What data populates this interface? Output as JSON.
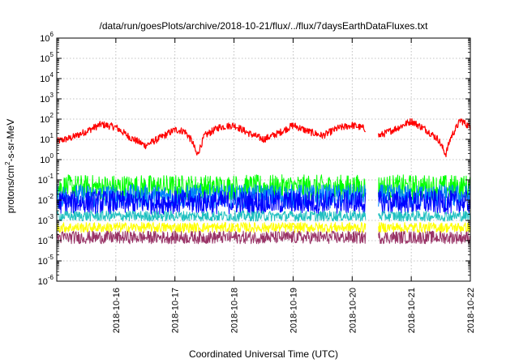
{
  "chart_data": {
    "type": "line",
    "title": "/data/run/goesPlots/archive/2018-10-21/flux/../flux/7daysEarthDataFluxes.txt",
    "xlabel": "Coordinated Universal Time (UTC)",
    "ylabel": "protons/cm²-s-sr-MeV",
    "ylabel_base": "protons/cm",
    "ylabel_sup": "2",
    "ylabel_rest": "-s-sr-MeV",
    "y_scale": "log",
    "ylim": [
      1e-06,
      1000000.0
    ],
    "y_ticks": [
      {
        "base": "10",
        "exp": "-6",
        "value": 1e-06
      },
      {
        "base": "10",
        "exp": "-5",
        "value": 1e-05
      },
      {
        "base": "10",
        "exp": "-4",
        "value": 0.0001
      },
      {
        "base": "10",
        "exp": "-3",
        "value": 0.001
      },
      {
        "base": "10",
        "exp": "-2",
        "value": 0.01
      },
      {
        "base": "10",
        "exp": "-1",
        "value": 0.1
      },
      {
        "base": "10",
        "exp": "0",
        "value": 1
      },
      {
        "base": "10",
        "exp": "1",
        "value": 10
      },
      {
        "base": "10",
        "exp": "2",
        "value": 100
      },
      {
        "base": "10",
        "exp": "3",
        "value": 1000
      },
      {
        "base": "10",
        "exp": "4",
        "value": 10000
      },
      {
        "base": "10",
        "exp": "5",
        "value": 100000
      },
      {
        "base": "10",
        "exp": "6",
        "value": 1000000
      }
    ],
    "xlim": [
      "2018-10-15T00:00",
      "2018-10-22T00:00"
    ],
    "x_ticks": [
      "2018-10-16",
      "2018-10-17",
      "2018-10-18",
      "2018-10-19",
      "2018-10-20",
      "2018-10-21",
      "2018-10-22"
    ],
    "grid": true,
    "legend": "none",
    "data_gaps": [
      [
        "2018-10-17T20:42",
        "2018-10-17T21:00"
      ],
      [
        "2018-10-20T05:30",
        "2018-10-20T10:30"
      ]
    ],
    "series": [
      {
        "color": "#ff0000",
        "x": [
          "2018-10-15T00:00",
          "2018-10-15T06:00",
          "2018-10-15T12:00",
          "2018-10-15T18:00",
          "2018-10-16T00:00",
          "2018-10-16T06:00",
          "2018-10-16T12:00",
          "2018-10-16T18:00",
          "2018-10-17T00:00",
          "2018-10-17T04:00",
          "2018-10-17T07:00",
          "2018-10-17T09:00",
          "2018-10-17T12:00",
          "2018-10-17T18:00",
          "2018-10-18T00:00",
          "2018-10-18T06:00",
          "2018-10-18T12:00",
          "2018-10-18T18:00",
          "2018-10-19T00:00",
          "2018-10-19T06:00",
          "2018-10-19T12:00",
          "2018-10-19T18:00",
          "2018-10-20T00:00",
          "2018-10-20T05:00",
          "2018-10-20T11:00",
          "2018-10-20T18:00",
          "2018-10-21T00:00",
          "2018-10-21T06:00",
          "2018-10-21T11:00",
          "2018-10-21T14:00",
          "2018-10-21T16:00",
          "2018-10-21T20:00",
          "2018-10-22T00:00"
        ],
        "values": [
          8,
          12,
          25,
          55,
          40,
          12,
          5,
          12,
          30,
          25,
          8,
          1.6,
          15,
          40,
          50,
          20,
          10,
          20,
          50,
          25,
          15,
          35,
          50,
          35,
          15,
          35,
          80,
          30,
          10,
          1.8,
          12,
          90,
          40
        ]
      },
      {
        "color": "#00ff00",
        "x": [
          "2018-10-15T00:00",
          "2018-10-22T00:00"
        ],
        "values": [
          0.03,
          0.03
        ],
        "y_min": 0.01,
        "y_max": 0.18
      },
      {
        "color": "#0080ff",
        "x": [
          "2018-10-15T00:00",
          "2018-10-22T00:00"
        ],
        "values": [
          0.012,
          0.012
        ],
        "y_min": 0.004,
        "y_max": 0.06
      },
      {
        "color": "#0000ff",
        "x": [
          "2018-10-15T00:00",
          "2018-10-22T00:00"
        ],
        "values": [
          0.006,
          0.006
        ],
        "y_min": 0.002,
        "y_max": 0.03
      },
      {
        "color": "#20c0c0",
        "x": [
          "2018-10-15T00:00",
          "2018-10-22T00:00"
        ],
        "values": [
          0.0015,
          0.0015
        ],
        "y_min": 0.0009,
        "y_max": 0.003
      },
      {
        "color": "#ffff00",
        "x": [
          "2018-10-15T00:00",
          "2018-10-22T00:00"
        ],
        "values": [
          0.0004,
          0.0004
        ],
        "y_min": 0.00025,
        "y_max": 0.0008
      },
      {
        "color": "#993366",
        "x": [
          "2018-10-15T00:00",
          "2018-10-22T00:00"
        ],
        "values": [
          0.00012,
          0.00012
        ],
        "y_min": 7e-05,
        "y_max": 0.0003
      }
    ]
  }
}
